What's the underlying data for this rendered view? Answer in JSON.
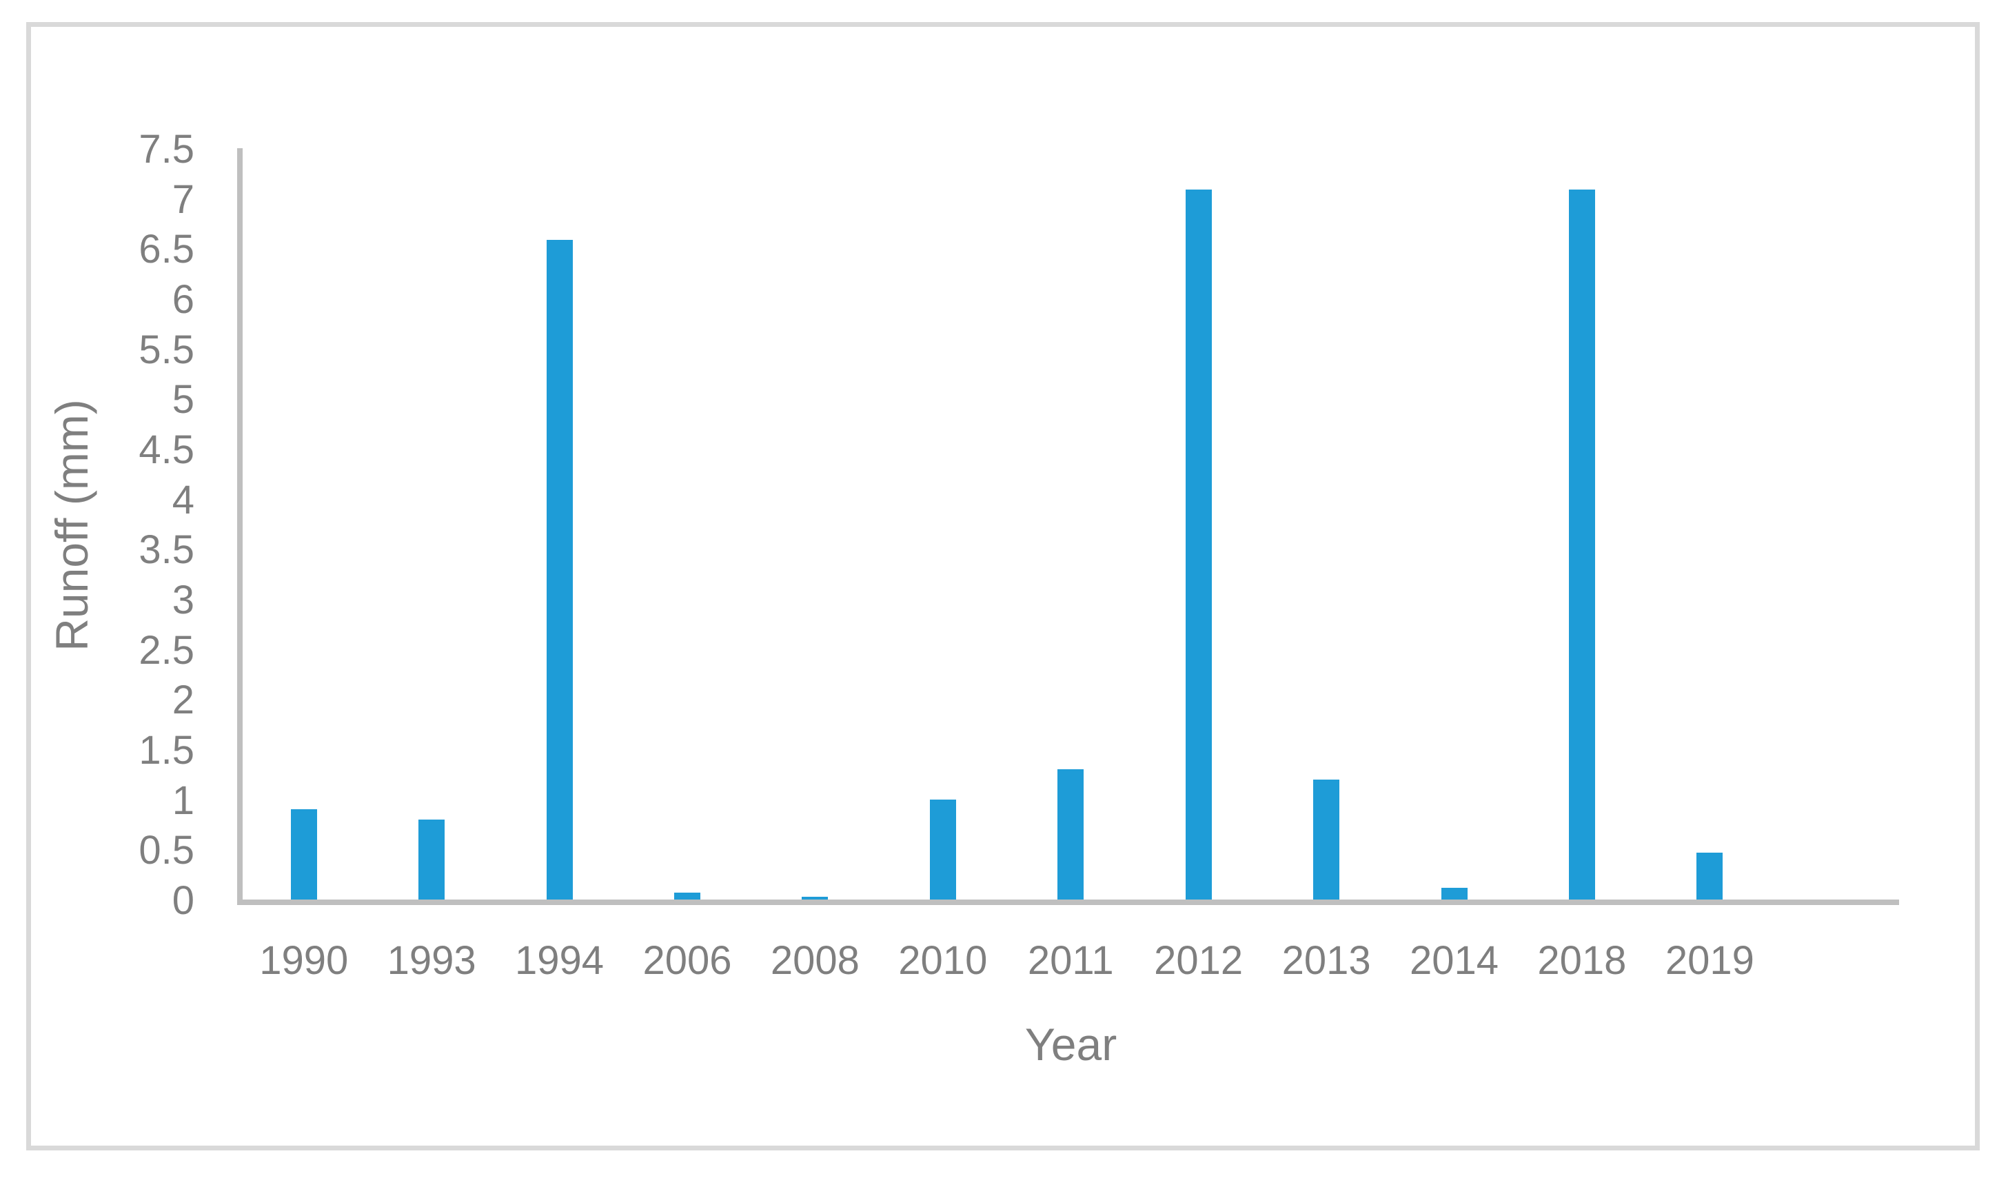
{
  "figure": {
    "background_color": "#FFFFFF",
    "frame_color": "#D9D9D9"
  },
  "chart_data": {
    "type": "bar",
    "title": "",
    "xlabel": "Year",
    "ylabel": "Runoff (mm)",
    "categories": [
      "1990",
      "1993",
      "1994",
      "2006",
      "2008",
      "2010",
      "2011",
      "2012",
      "2013",
      "2014",
      "2018",
      "2019"
    ],
    "values": [
      0.9,
      0.8,
      6.6,
      0.07,
      0.03,
      1.0,
      1.3,
      7.1,
      1.2,
      0.12,
      7.1,
      0.47
    ],
    "ylim": [
      0,
      7.5
    ],
    "ytick_step": 0.5,
    "ytick_labels": [
      "7.5",
      "7",
      "6.5",
      "6",
      "5.5",
      "5",
      "4.5",
      "4",
      "3.5",
      "3",
      "2.5",
      "2",
      "1.5",
      "1",
      "0.5",
      "0"
    ],
    "grid": false,
    "legend": "none",
    "bar_color": "#1E9CD7",
    "axis_line_color": "#BFBFBF",
    "text_color": "#7F7F7F"
  }
}
